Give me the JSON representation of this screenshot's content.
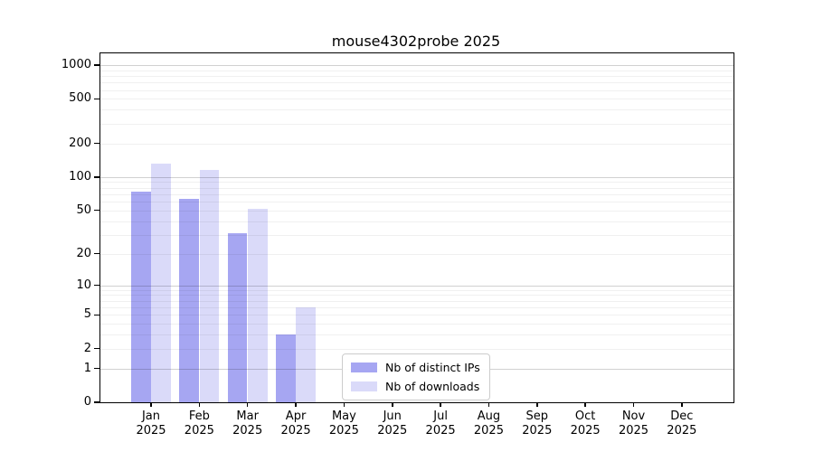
{
  "chart_data": {
    "type": "bar",
    "title": "mouse4302probe 2025",
    "scale": "log10(1+x)",
    "grid": "horizontal major and minor gridlines, on",
    "legend_position": "inside plot, lower center",
    "ylim": [
      0,
      1270
    ],
    "y_ticks": [
      0,
      1,
      2,
      5,
      10,
      20,
      50,
      100,
      200,
      500,
      1000
    ],
    "categories": [
      {
        "month": "Jan",
        "year": "2025"
      },
      {
        "month": "Feb",
        "year": "2025"
      },
      {
        "month": "Mar",
        "year": "2025"
      },
      {
        "month": "Apr",
        "year": "2025"
      },
      {
        "month": "May",
        "year": "2025"
      },
      {
        "month": "Jun",
        "year": "2025"
      },
      {
        "month": "Jul",
        "year": "2025"
      },
      {
        "month": "Aug",
        "year": "2025"
      },
      {
        "month": "Sep",
        "year": "2025"
      },
      {
        "month": "Oct",
        "year": "2025"
      },
      {
        "month": "Nov",
        "year": "2025"
      },
      {
        "month": "Dec",
        "year": "2025"
      }
    ],
    "series": [
      {
        "name": "Nb of distinct IPs",
        "color": "#a6a6f2",
        "values": [
          74,
          64,
          31,
          3,
          0,
          0,
          0,
          0,
          0,
          0,
          0,
          0
        ]
      },
      {
        "name": "Nb of downloads",
        "color": "#dadaf9",
        "values": [
          132,
          115,
          52,
          6,
          0,
          0,
          0,
          0,
          0,
          0,
          0,
          0
        ]
      }
    ]
  },
  "colors": {
    "frame": "#000000",
    "background": "#ffffff",
    "legend_border": "#cccccc"
  }
}
